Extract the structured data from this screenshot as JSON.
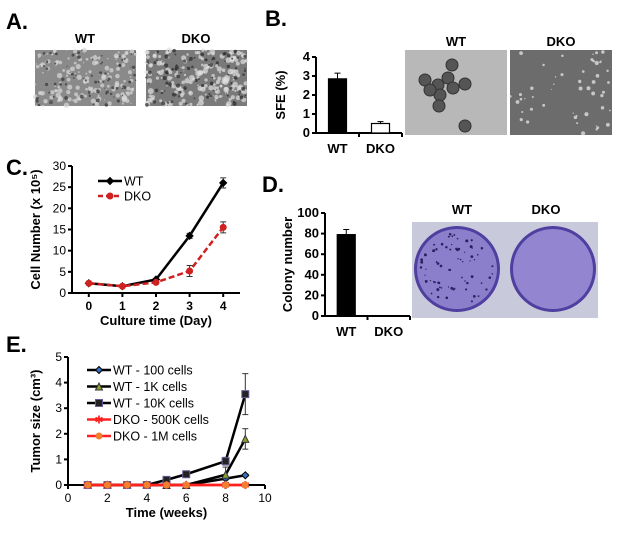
{
  "panels": {
    "A": {
      "label": "A.",
      "images": [
        "WT",
        "DKO"
      ]
    },
    "B": {
      "label": "B.",
      "images": [
        "WT",
        "DKO"
      ]
    },
    "C": {
      "label": "C."
    },
    "D": {
      "label": "D.",
      "images": [
        "WT",
        "DKO"
      ]
    },
    "E": {
      "label": "E."
    }
  },
  "colors": {
    "wt": "#000000",
    "dko": "#d02020",
    "plate": "#7d6fc0",
    "wt100": "#3a6fc0",
    "wt1k": "#8aa030",
    "wt10k": "#5a4a90",
    "dko_red": "#ff2020",
    "dko_orange": "#f08030"
  },
  "chart_data": [
    {
      "id": "B",
      "type": "bar",
      "categories": [
        "WT",
        "DKO"
      ],
      "values": [
        2.85,
        0.5
      ],
      "errors": [
        0.3,
        0.1
      ],
      "fills": [
        "#000000",
        "#ffffff"
      ],
      "ylabel": "SFE (%)",
      "ylim": [
        0,
        4
      ],
      "yticks": [
        0,
        1,
        2,
        3,
        4
      ]
    },
    {
      "id": "C",
      "type": "line",
      "x": [
        0,
        1,
        2,
        3,
        4
      ],
      "xlabel": "Culture time (Day)",
      "ylabel": "Cell Number (x 10⁵)",
      "ylim": [
        0,
        30
      ],
      "yticks": [
        0,
        5,
        10,
        15,
        20,
        25,
        30
      ],
      "xlim": [
        -0.5,
        4.5
      ],
      "xticks": [
        0,
        1,
        2,
        3,
        4
      ],
      "legend": "top-left",
      "series": [
        {
          "name": "WT",
          "values": [
            2.3,
            1.6,
            3.2,
            13.5,
            26
          ],
          "errors": [
            0,
            0,
            0,
            0.6,
            1.2
          ],
          "color": "#000000",
          "marker": "diamond",
          "dash": false
        },
        {
          "name": "DKO",
          "values": [
            2.3,
            1.6,
            2.5,
            5.2,
            15.5
          ],
          "errors": [
            0,
            0,
            0,
            1.3,
            1.3
          ],
          "color": "#d02020",
          "marker": "circle",
          "dash": true
        }
      ]
    },
    {
      "id": "D",
      "type": "bar",
      "categories": [
        "WT",
        "DKO"
      ],
      "values": [
        79,
        0
      ],
      "errors": [
        5,
        0
      ],
      "fills": [
        "#000000",
        "#ffffff"
      ],
      "ylabel": "Colony number",
      "ylim": [
        0,
        100
      ],
      "yticks": [
        0,
        20,
        40,
        60,
        80,
        100
      ]
    },
    {
      "id": "E",
      "type": "line",
      "x": [
        1,
        2,
        3,
        4,
        5,
        6,
        8,
        9
      ],
      "xlabel": "Time (weeks)",
      "ylabel": "Tumor size (cm³)",
      "xlim": [
        0,
        10
      ],
      "xticks": [
        0,
        2,
        4,
        6,
        8,
        10
      ],
      "ylim": [
        0,
        5
      ],
      "yticks": [
        0,
        1,
        2,
        3,
        4,
        5
      ],
      "legend": "top-left",
      "series": [
        {
          "name": "WT - 100 cells",
          "values": [
            0,
            0,
            0,
            0,
            0,
            0,
            0.25,
            0.38
          ],
          "errors": [
            0,
            0,
            0,
            0,
            0,
            0,
            0.05,
            0.05
          ],
          "color": "#000000",
          "mcolor": "#3a6fc0",
          "marker": "diamond"
        },
        {
          "name": "WT - 1K cells",
          "values": [
            0,
            0,
            0,
            0,
            0,
            0,
            0.4,
            1.8
          ],
          "errors": [
            0,
            0,
            0,
            0,
            0,
            0,
            0.3,
            0.4
          ],
          "color": "#000000",
          "mcolor": "#8aa030",
          "marker": "triangle"
        },
        {
          "name": "WT - 10K cells",
          "values": [
            0,
            0,
            0,
            0,
            0.2,
            0.42,
            0.93,
            3.55
          ],
          "errors": [
            0,
            0,
            0,
            0,
            0,
            0,
            0.15,
            0.8
          ],
          "color": "#000000",
          "mcolor": "#222222",
          "marker": "square"
        },
        {
          "name": "DKO - 500K cells",
          "values": [
            0,
            0,
            0,
            0,
            0,
            0,
            0,
            0
          ],
          "errors": [
            0,
            0,
            0,
            0,
            0,
            0,
            0,
            0
          ],
          "color": "#ff2020",
          "mcolor": "#ff2020",
          "marker": "star"
        },
        {
          "name": "DKO - 1M cells",
          "values": [
            0,
            0,
            0,
            0,
            0,
            0,
            0,
            0
          ],
          "errors": [
            0,
            0,
            0,
            0,
            0,
            0,
            0,
            0
          ],
          "color": "#ff2020",
          "mcolor": "#f08030",
          "marker": "circle"
        }
      ]
    }
  ]
}
